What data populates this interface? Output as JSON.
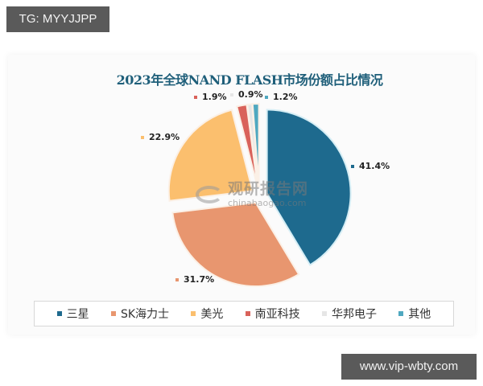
{
  "overlay": {
    "top_tag": "TG: MYYJJPP",
    "bottom_tag": "www.vip-wbty.com"
  },
  "watermark": {
    "cn": "观研报告网",
    "en": "chinabaogao.com"
  },
  "chart_data": {
    "type": "pie",
    "title": "2023年全球NAND FLASH市场份额占比情况",
    "categories": [
      "三星",
      "SK海力士",
      "美光",
      "南亚科技",
      "华邦电子",
      "其他"
    ],
    "values": [
      41.4,
      31.7,
      22.9,
      1.9,
      0.9,
      1.2
    ],
    "unit": "%",
    "labels": [
      "41.4%",
      "31.7%",
      "22.9%",
      "1.9%",
      "0.9%",
      "1.2%"
    ],
    "colors": [
      "#1e6a8e",
      "#e8966f",
      "#fbbf6e",
      "#d9625a",
      "#e6e6e6",
      "#4fa8c0"
    ],
    "start_angle": "12 o'clock",
    "direction": "clockwise",
    "exploded": true,
    "legend_position": "bottom"
  }
}
